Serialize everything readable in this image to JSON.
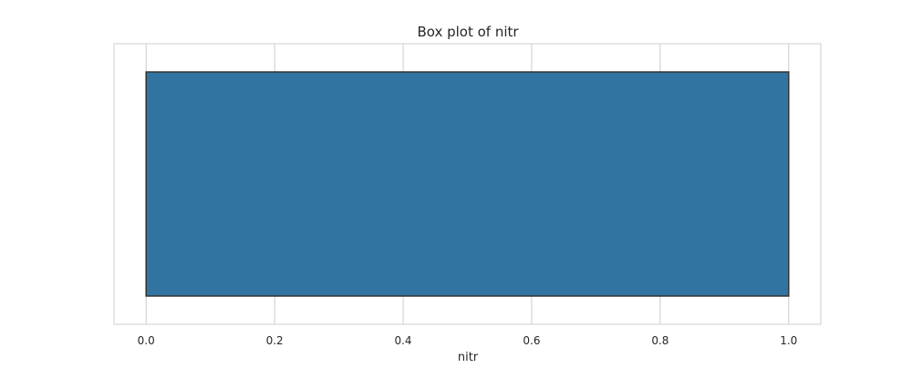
{
  "chart_data": {
    "type": "box",
    "title": "Box plot of nitr",
    "xlabel": "nitr",
    "ylabel": "",
    "orientation": "horizontal",
    "xlim": [
      -0.05,
      1.05
    ],
    "xticks": [
      0.0,
      0.2,
      0.4,
      0.6,
      0.8,
      1.0
    ],
    "xtick_labels": [
      "0.0",
      "0.2",
      "0.4",
      "0.6",
      "0.8",
      "1.0"
    ],
    "grid": true,
    "box": {
      "min": 0.0,
      "q1": 0.0,
      "median": 0.0,
      "q3": 1.0,
      "max": 1.0
    },
    "colors": {
      "box_fill": "#3274a1",
      "box_edge": "#333333",
      "grid": "#cccccc",
      "frame": "#cccccc"
    }
  }
}
